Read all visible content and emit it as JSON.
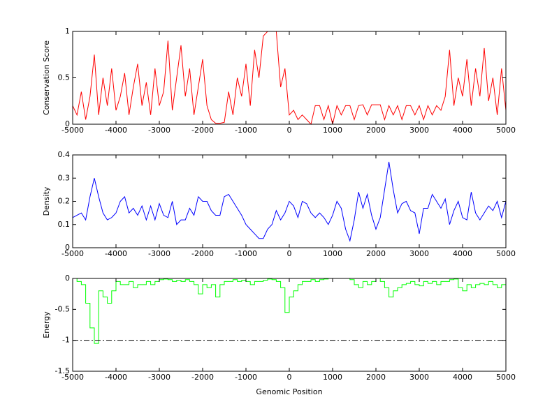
{
  "chart_data": [
    {
      "type": "line",
      "ylabel": "Conservation Score",
      "color": "#ff0000",
      "x": [
        -5000,
        -4900,
        -4800,
        -4700,
        -4600,
        -4500,
        -4400,
        -4300,
        -4200,
        -4100,
        -4000,
        -3900,
        -3800,
        -3700,
        -3600,
        -3500,
        -3400,
        -3300,
        -3200,
        -3100,
        -3000,
        -2900,
        -2800,
        -2700,
        -2600,
        -2500,
        -2400,
        -2300,
        -2200,
        -2100,
        -2000,
        -1900,
        -1800,
        -1700,
        -1600,
        -1500,
        -1400,
        -1300,
        -1200,
        -1100,
        -1000,
        -900,
        -800,
        -700,
        -600,
        -500,
        -400,
        -300,
        -200,
        -100,
        0,
        100,
        200,
        300,
        400,
        500,
        600,
        700,
        800,
        900,
        1000,
        1100,
        1200,
        1300,
        1400,
        1500,
        1600,
        1700,
        1800,
        1900,
        2000,
        2100,
        2200,
        2300,
        2400,
        2500,
        2600,
        2700,
        2800,
        2900,
        3000,
        3100,
        3200,
        3300,
        3400,
        3500,
        3600,
        3700,
        3800,
        3900,
        4000,
        4100,
        4200,
        4300,
        4400,
        4500,
        4600,
        4700,
        4800,
        4900,
        5000
      ],
      "values": [
        0.2,
        0.1,
        0.35,
        0.05,
        0.3,
        0.75,
        0.1,
        0.5,
        0.2,
        0.6,
        0.15,
        0.3,
        0.55,
        0.1,
        0.4,
        0.65,
        0.2,
        0.45,
        0.1,
        0.6,
        0.2,
        0.35,
        0.9,
        0.15,
        0.5,
        0.85,
        0.3,
        0.6,
        0.1,
        0.4,
        0.7,
        0.2,
        0.05,
        0.01,
        0.01,
        0.02,
        0.35,
        0.1,
        0.5,
        0.3,
        0.65,
        0.2,
        0.8,
        0.5,
        0.95,
        1,
        1,
        1,
        0.4,
        0.6,
        0.1,
        0.15,
        0.05,
        0.1,
        0.05,
        0,
        0.2,
        0.2,
        0.05,
        0.2,
        0,
        0.2,
        0.1,
        0.2,
        0.2,
        0.05,
        0.2,
        0.21,
        0.1,
        0.21,
        0.21,
        0.21,
        0.05,
        0.2,
        0.1,
        0.2,
        0.05,
        0.2,
        0.2,
        0.1,
        0.2,
        0.05,
        0.2,
        0.1,
        0.2,
        0.15,
        0.3,
        0.8,
        0.2,
        0.5,
        0.3,
        0.7,
        0.2,
        0.6,
        0.3,
        0.82,
        0.25,
        0.5,
        0.1,
        0.6,
        0.15
      ],
      "xlim": [
        -5000,
        5000
      ],
      "xticks": [
        -5000,
        -4000,
        -3000,
        -2000,
        -1000,
        0,
        1000,
        2000,
        3000,
        4000,
        5000
      ],
      "ylim": [
        0,
        1
      ],
      "yticks": [
        0,
        0.5,
        1
      ]
    },
    {
      "type": "line",
      "ylabel": "Density",
      "color": "#0000ff",
      "x": [
        -5000,
        -4900,
        -4800,
        -4700,
        -4600,
        -4500,
        -4400,
        -4300,
        -4200,
        -4100,
        -4000,
        -3900,
        -3800,
        -3700,
        -3600,
        -3500,
        -3400,
        -3300,
        -3200,
        -3100,
        -3000,
        -2900,
        -2800,
        -2700,
        -2600,
        -2500,
        -2400,
        -2300,
        -2200,
        -2100,
        -2000,
        -1900,
        -1800,
        -1700,
        -1600,
        -1500,
        -1400,
        -1300,
        -1200,
        -1100,
        -1000,
        -900,
        -800,
        -700,
        -600,
        -500,
        -400,
        -300,
        -200,
        -100,
        0,
        100,
        200,
        300,
        400,
        500,
        600,
        700,
        800,
        900,
        1000,
        1100,
        1200,
        1300,
        1400,
        1500,
        1600,
        1700,
        1800,
        1900,
        2000,
        2100,
        2200,
        2300,
        2400,
        2500,
        2600,
        2700,
        2800,
        2900,
        3000,
        3100,
        3200,
        3300,
        3400,
        3500,
        3600,
        3700,
        3800,
        3900,
        4000,
        4100,
        4200,
        4300,
        4400,
        4500,
        4600,
        4700,
        4800,
        4900,
        5000
      ],
      "values": [
        0.13,
        0.14,
        0.15,
        0.12,
        0.22,
        0.3,
        0.22,
        0.15,
        0.12,
        0.13,
        0.15,
        0.2,
        0.22,
        0.15,
        0.17,
        0.14,
        0.18,
        0.12,
        0.18,
        0.12,
        0.19,
        0.14,
        0.13,
        0.2,
        0.1,
        0.12,
        0.12,
        0.17,
        0.14,
        0.22,
        0.2,
        0.2,
        0.16,
        0.14,
        0.14,
        0.22,
        0.23,
        0.2,
        0.17,
        0.14,
        0.1,
        0.08,
        0.06,
        0.04,
        0.04,
        0.08,
        0.1,
        0.16,
        0.12,
        0.15,
        0.2,
        0.18,
        0.13,
        0.2,
        0.19,
        0.15,
        0.13,
        0.15,
        0.13,
        0.1,
        0.14,
        0.2,
        0.17,
        0.08,
        0.03,
        0.12,
        0.24,
        0.17,
        0.23,
        0.14,
        0.08,
        0.13,
        0.25,
        0.37,
        0.25,
        0.15,
        0.19,
        0.2,
        0.16,
        0.15,
        0.06,
        0.17,
        0.17,
        0.23,
        0.2,
        0.17,
        0.21,
        0.1,
        0.16,
        0.2,
        0.13,
        0.12,
        0.24,
        0.15,
        0.12,
        0.15,
        0.18,
        0.16,
        0.2,
        0.13,
        0.2
      ],
      "xlim": [
        -5000,
        5000
      ],
      "xticks": [
        -5000,
        -4000,
        -3000,
        -2000,
        -1000,
        0,
        1000,
        2000,
        3000,
        4000,
        5000
      ],
      "ylim": [
        0,
        0.4
      ],
      "yticks": [
        0,
        0.1,
        0.2,
        0.3,
        0.4
      ]
    },
    {
      "type": "line",
      "drawstyle": "steps",
      "ylabel": "Energy",
      "xlabel": "Genomic Position",
      "color": "#00ff00",
      "x": [
        -5000,
        -4900,
        -4800,
        -4700,
        -4600,
        -4500,
        -4400,
        -4300,
        -4200,
        -4100,
        -4000,
        -3900,
        -3800,
        -3700,
        -3600,
        -3500,
        -3400,
        -3300,
        -3200,
        -3100,
        -3000,
        -2900,
        -2800,
        -2700,
        -2600,
        -2500,
        -2400,
        -2300,
        -2200,
        -2100,
        -2000,
        -1900,
        -1800,
        -1700,
        -1600,
        -1500,
        -1400,
        -1300,
        -1200,
        -1100,
        -1000,
        -900,
        -800,
        -700,
        -600,
        -500,
        -400,
        -300,
        -200,
        -100,
        0,
        100,
        200,
        300,
        400,
        500,
        600,
        700,
        800,
        900,
        1000,
        1100,
        1200,
        1300,
        1400,
        1500,
        1600,
        1700,
        1800,
        1900,
        2000,
        2100,
        2200,
        2300,
        2400,
        2500,
        2600,
        2700,
        2800,
        2900,
        3000,
        3100,
        3200,
        3300,
        3400,
        3500,
        3600,
        3700,
        3800,
        3900,
        4000,
        4100,
        4200,
        4300,
        4400,
        4500,
        4600,
        4700,
        4800,
        4900,
        5000
      ],
      "values": [
        0,
        -0.05,
        -0.1,
        -0.4,
        -0.8,
        -1.05,
        -0.2,
        -0.3,
        -0.4,
        -0.2,
        -0.05,
        -0.1,
        -0.1,
        -0.05,
        -0.15,
        -0.1,
        -0.1,
        -0.05,
        -0.1,
        -0.05,
        -0.02,
        -0.01,
        -0.02,
        -0.05,
        -0.03,
        -0.05,
        -0.02,
        -0.05,
        -0.1,
        -0.25,
        -0.1,
        -0.15,
        -0.1,
        -0.3,
        -0.1,
        -0.05,
        -0.05,
        -0.02,
        -0.05,
        -0.03,
        -0.05,
        -0.1,
        -0.05,
        -0.05,
        -0.03,
        -0.01,
        -0.02,
        -0.05,
        -0.15,
        -0.55,
        -0.3,
        -0.2,
        -0.1,
        -0.05,
        -0.05,
        -0.02,
        -0.05,
        -0.02,
        -0.01,
        0,
        0,
        0,
        0,
        0,
        -0.02,
        -0.1,
        -0.15,
        -0.05,
        -0.1,
        -0.05,
        0,
        -0.05,
        -0.15,
        -0.3,
        -0.2,
        -0.15,
        -0.1,
        -0.08,
        -0.05,
        -0.1,
        -0.12,
        -0.05,
        -0.08,
        -0.05,
        -0.1,
        -0.05,
        -0.05,
        -0.02,
        -0.01,
        -0.15,
        -0.2,
        -0.1,
        -0.15,
        -0.1,
        -0.08,
        -0.1,
        -0.05,
        -0.1,
        -0.15,
        -0.1,
        -0.2
      ],
      "reference_y": -1,
      "xlim": [
        -5000,
        5000
      ],
      "xticks": [
        -5000,
        -4000,
        -3000,
        -2000,
        -1000,
        0,
        1000,
        2000,
        3000,
        4000,
        5000
      ],
      "ylim": [
        -1.5,
        0
      ],
      "yticks": [
        -1.5,
        -1,
        -0.5,
        0
      ]
    }
  ]
}
